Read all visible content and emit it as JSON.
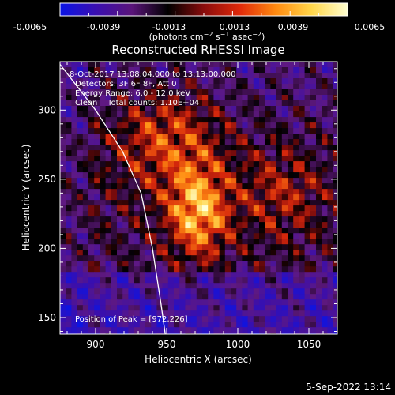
{
  "colorbar": {
    "tick_labels": [
      "-0.0065",
      "-0.0039",
      "-0.0013",
      "0.0013",
      "0.0039",
      "0.0065"
    ],
    "range": [
      -0.0065,
      0.0065
    ],
    "colormap": [
      "#0a14e6",
      "#3a0fb0",
      "#5a147a",
      "#000000",
      "#8a0c0c",
      "#e0290a",
      "#ff8a10",
      "#ffd64a",
      "#ffffd0"
    ]
  },
  "chart_data": {
    "type": "heatmap",
    "title": "Reconstructed RHESSI Image",
    "xlabel": "Heliocentric X (arcsec)",
    "ylabel": "Heliocentric Y (arcsec)",
    "xlim": [
      875,
      1070
    ],
    "ylim": [
      138,
      335
    ],
    "xticks": [
      900,
      950,
      1000,
      1050
    ],
    "yticks": [
      150,
      200,
      250,
      300
    ],
    "peak": [
      972,
      226
    ],
    "limb_points": [
      [
        872,
        337
      ],
      [
        900,
        300
      ],
      [
        919,
        270
      ],
      [
        932,
        240
      ],
      [
        940,
        200
      ],
      [
        946,
        160
      ],
      [
        949,
        138
      ]
    ],
    "annotations": {
      "time_range": "8-Oct-2017 13:08:04.000 to 13:13:00.000",
      "detectors": "Detectors: 3F 6F 8F, Att 0",
      "energy_range": "Energy Range: 6.0 - 12.0 keV",
      "method": "Clean    Total counts: 1.10E+04",
      "peak_position": "Position of Peak = [972,226]"
    }
  },
  "footer": {
    "timestamp": "5-Sep-2022 13:14"
  }
}
